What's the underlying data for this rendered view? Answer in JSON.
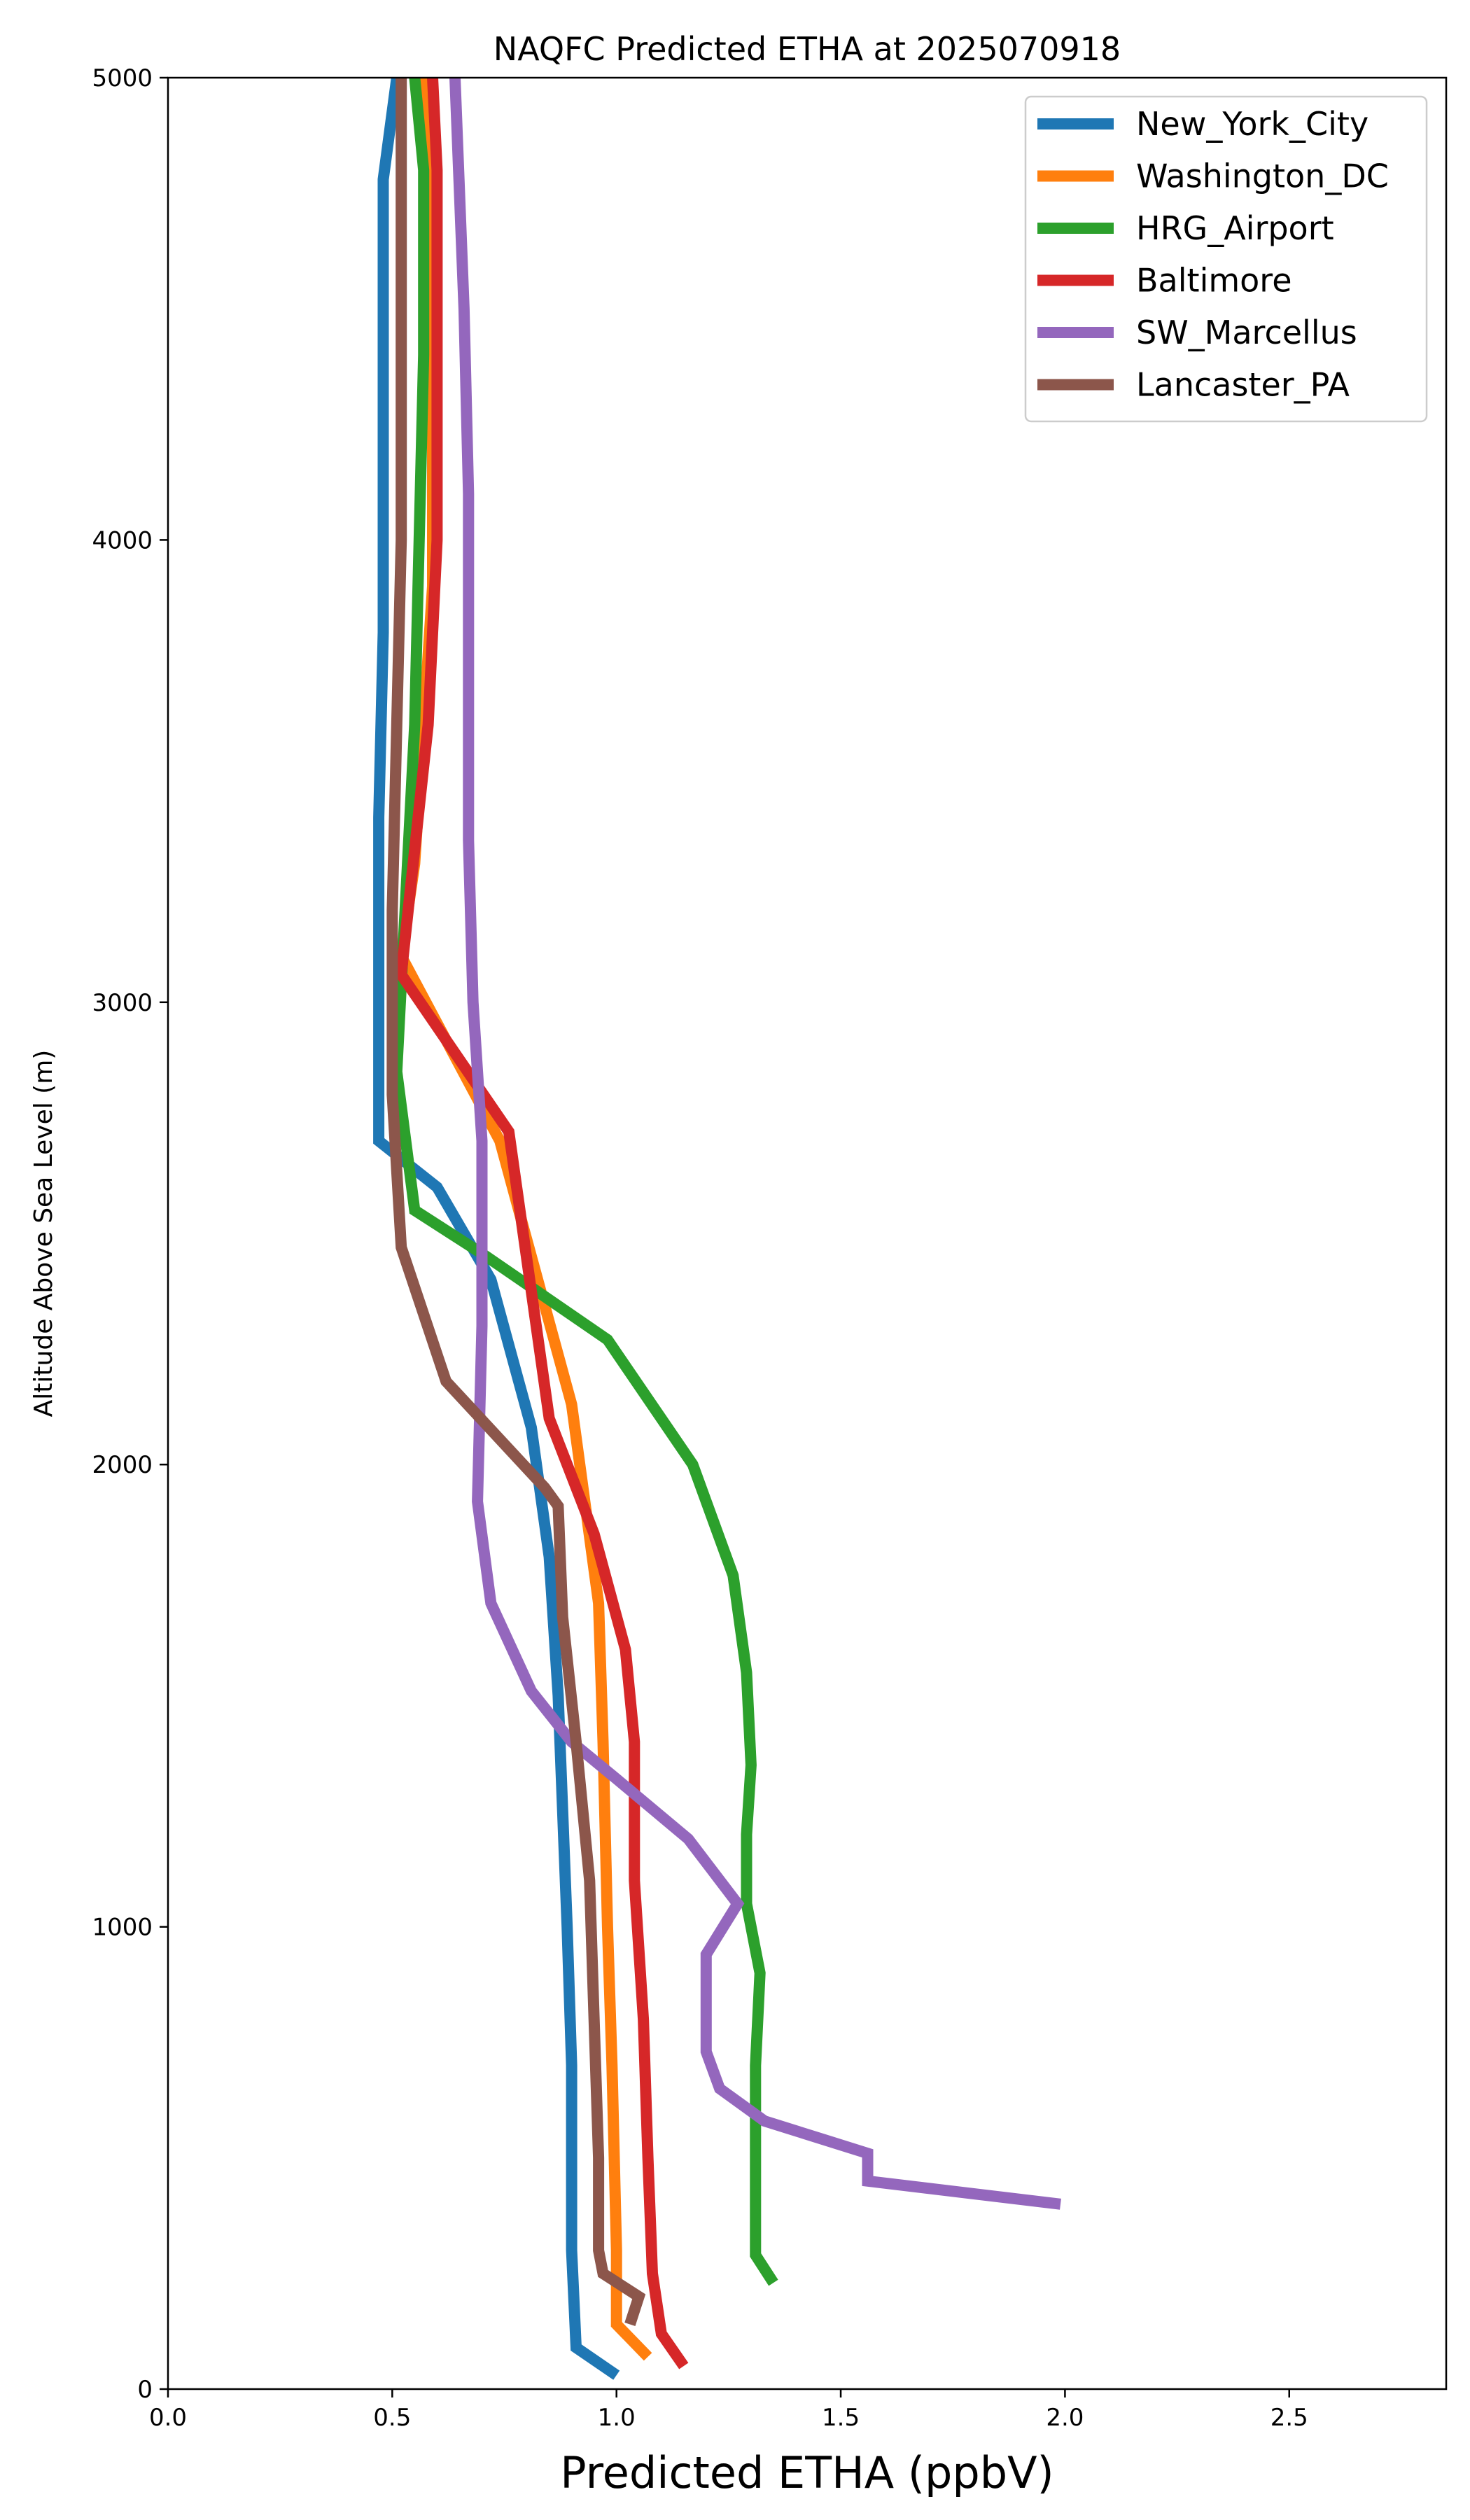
{
  "chart_data": {
    "type": "line",
    "title": "NAQFC Predicted ETHA at 2025070918",
    "xlabel": "Predicted ETHA (ppbV)",
    "ylabel": "Altitude Above Sea Level (m)",
    "xlim": [
      0,
      2.85
    ],
    "ylim": [
      0,
      5000
    ],
    "xticks": [
      {
        "value": 0.0,
        "label": "0.0"
      },
      {
        "value": 0.5,
        "label": "0.5"
      },
      {
        "value": 1.0,
        "label": "1.0"
      },
      {
        "value": 1.5,
        "label": "1.5"
      },
      {
        "value": 2.0,
        "label": "2.0"
      },
      {
        "value": 2.5,
        "label": "2.5"
      }
    ],
    "yticks": [
      {
        "value": 0,
        "label": "0"
      },
      {
        "value": 1000,
        "label": "1000"
      },
      {
        "value": 2000,
        "label": "2000"
      },
      {
        "value": 3000,
        "label": "3000"
      },
      {
        "value": 4000,
        "label": "4000"
      },
      {
        "value": 5000,
        "label": "5000"
      }
    ],
    "grid": false,
    "legend_position": "top-right",
    "series": [
      {
        "name": "New_York_City",
        "color": "#1f77b4",
        "points": [
          [
            1.0,
            30
          ],
          [
            0.91,
            90
          ],
          [
            0.9,
            300
          ],
          [
            0.9,
            700
          ],
          [
            0.89,
            1000
          ],
          [
            0.87,
            1500
          ],
          [
            0.85,
            1800
          ],
          [
            0.81,
            2080
          ],
          [
            0.72,
            2400
          ],
          [
            0.6,
            2600
          ],
          [
            0.47,
            2700
          ],
          [
            0.47,
            3050
          ],
          [
            0.47,
            3400
          ],
          [
            0.48,
            3800
          ],
          [
            0.48,
            4400
          ],
          [
            0.48,
            4780
          ],
          [
            0.51,
            5000
          ]
        ]
      },
      {
        "name": "Washington_DC",
        "color": "#ff7f0e",
        "points": [
          [
            1.07,
            70
          ],
          [
            1.0,
            140
          ],
          [
            1.0,
            300
          ],
          [
            0.99,
            700
          ],
          [
            0.98,
            1000
          ],
          [
            0.97,
            1400
          ],
          [
            0.96,
            1700
          ],
          [
            0.9,
            2130
          ],
          [
            0.74,
            2700
          ],
          [
            0.52,
            3100
          ],
          [
            0.55,
            3300
          ],
          [
            0.59,
            3900
          ],
          [
            0.59,
            4300
          ],
          [
            0.58,
            4700
          ],
          [
            0.57,
            5000
          ]
        ]
      },
      {
        "name": "HRG_Airport",
        "color": "#2ca02c",
        "points": [
          [
            1.35,
            230
          ],
          [
            1.31,
            290
          ],
          [
            1.31,
            500
          ],
          [
            1.31,
            700
          ],
          [
            1.32,
            900
          ],
          [
            1.29,
            1050
          ],
          [
            1.29,
            1200
          ],
          [
            1.3,
            1350
          ],
          [
            1.29,
            1550
          ],
          [
            1.26,
            1760
          ],
          [
            1.17,
            2000
          ],
          [
            0.98,
            2270
          ],
          [
            0.71,
            2450
          ],
          [
            0.55,
            2550
          ],
          [
            0.51,
            2850
          ],
          [
            0.55,
            3600
          ],
          [
            0.56,
            4000
          ],
          [
            0.57,
            4400
          ],
          [
            0.57,
            4800
          ],
          [
            0.55,
            5000
          ]
        ]
      },
      {
        "name": "Baltimore",
        "color": "#d62728",
        "points": [
          [
            1.15,
            50
          ],
          [
            1.1,
            120
          ],
          [
            1.08,
            250
          ],
          [
            1.07,
            500
          ],
          [
            1.06,
            800
          ],
          [
            1.04,
            1100
          ],
          [
            1.04,
            1400
          ],
          [
            1.02,
            1600
          ],
          [
            0.95,
            1850
          ],
          [
            0.85,
            2100
          ],
          [
            0.76,
            2720
          ],
          [
            0.52,
            3060
          ],
          [
            0.58,
            3600
          ],
          [
            0.6,
            4000
          ],
          [
            0.6,
            4400
          ],
          [
            0.6,
            4800
          ],
          [
            0.59,
            5000
          ]
        ]
      },
      {
        "name": "SW_Marcellus",
        "color": "#9467bd",
        "points": [
          [
            1.99,
            400
          ],
          [
            1.56,
            450
          ],
          [
            1.56,
            510
          ],
          [
            1.33,
            580
          ],
          [
            1.23,
            650
          ],
          [
            1.2,
            730
          ],
          [
            1.2,
            940
          ],
          [
            1.27,
            1050
          ],
          [
            1.16,
            1190
          ],
          [
            1.0,
            1320
          ],
          [
            0.9,
            1400
          ],
          [
            0.81,
            1510
          ],
          [
            0.72,
            1700
          ],
          [
            0.69,
            1920
          ],
          [
            0.7,
            2300
          ],
          [
            0.7,
            2700
          ],
          [
            0.68,
            3000
          ],
          [
            0.67,
            3350
          ],
          [
            0.67,
            4100
          ],
          [
            0.66,
            4500
          ],
          [
            0.64,
            5000
          ]
        ]
      },
      {
        "name": "Lancaster_PA",
        "color": "#8c564b",
        "points": [
          [
            1.03,
            140
          ],
          [
            1.05,
            200
          ],
          [
            0.97,
            250
          ],
          [
            0.96,
            300
          ],
          [
            0.96,
            500
          ],
          [
            0.95,
            800
          ],
          [
            0.94,
            1100
          ],
          [
            0.91,
            1400
          ],
          [
            0.88,
            1670
          ],
          [
            0.87,
            1910
          ],
          [
            0.84,
            1950
          ],
          [
            0.62,
            2180
          ],
          [
            0.52,
            2470
          ],
          [
            0.5,
            2800
          ],
          [
            0.5,
            3200
          ],
          [
            0.51,
            3600
          ],
          [
            0.52,
            4000
          ],
          [
            0.52,
            4400
          ],
          [
            0.52,
            4800
          ],
          [
            0.52,
            5000
          ]
        ]
      }
    ]
  }
}
